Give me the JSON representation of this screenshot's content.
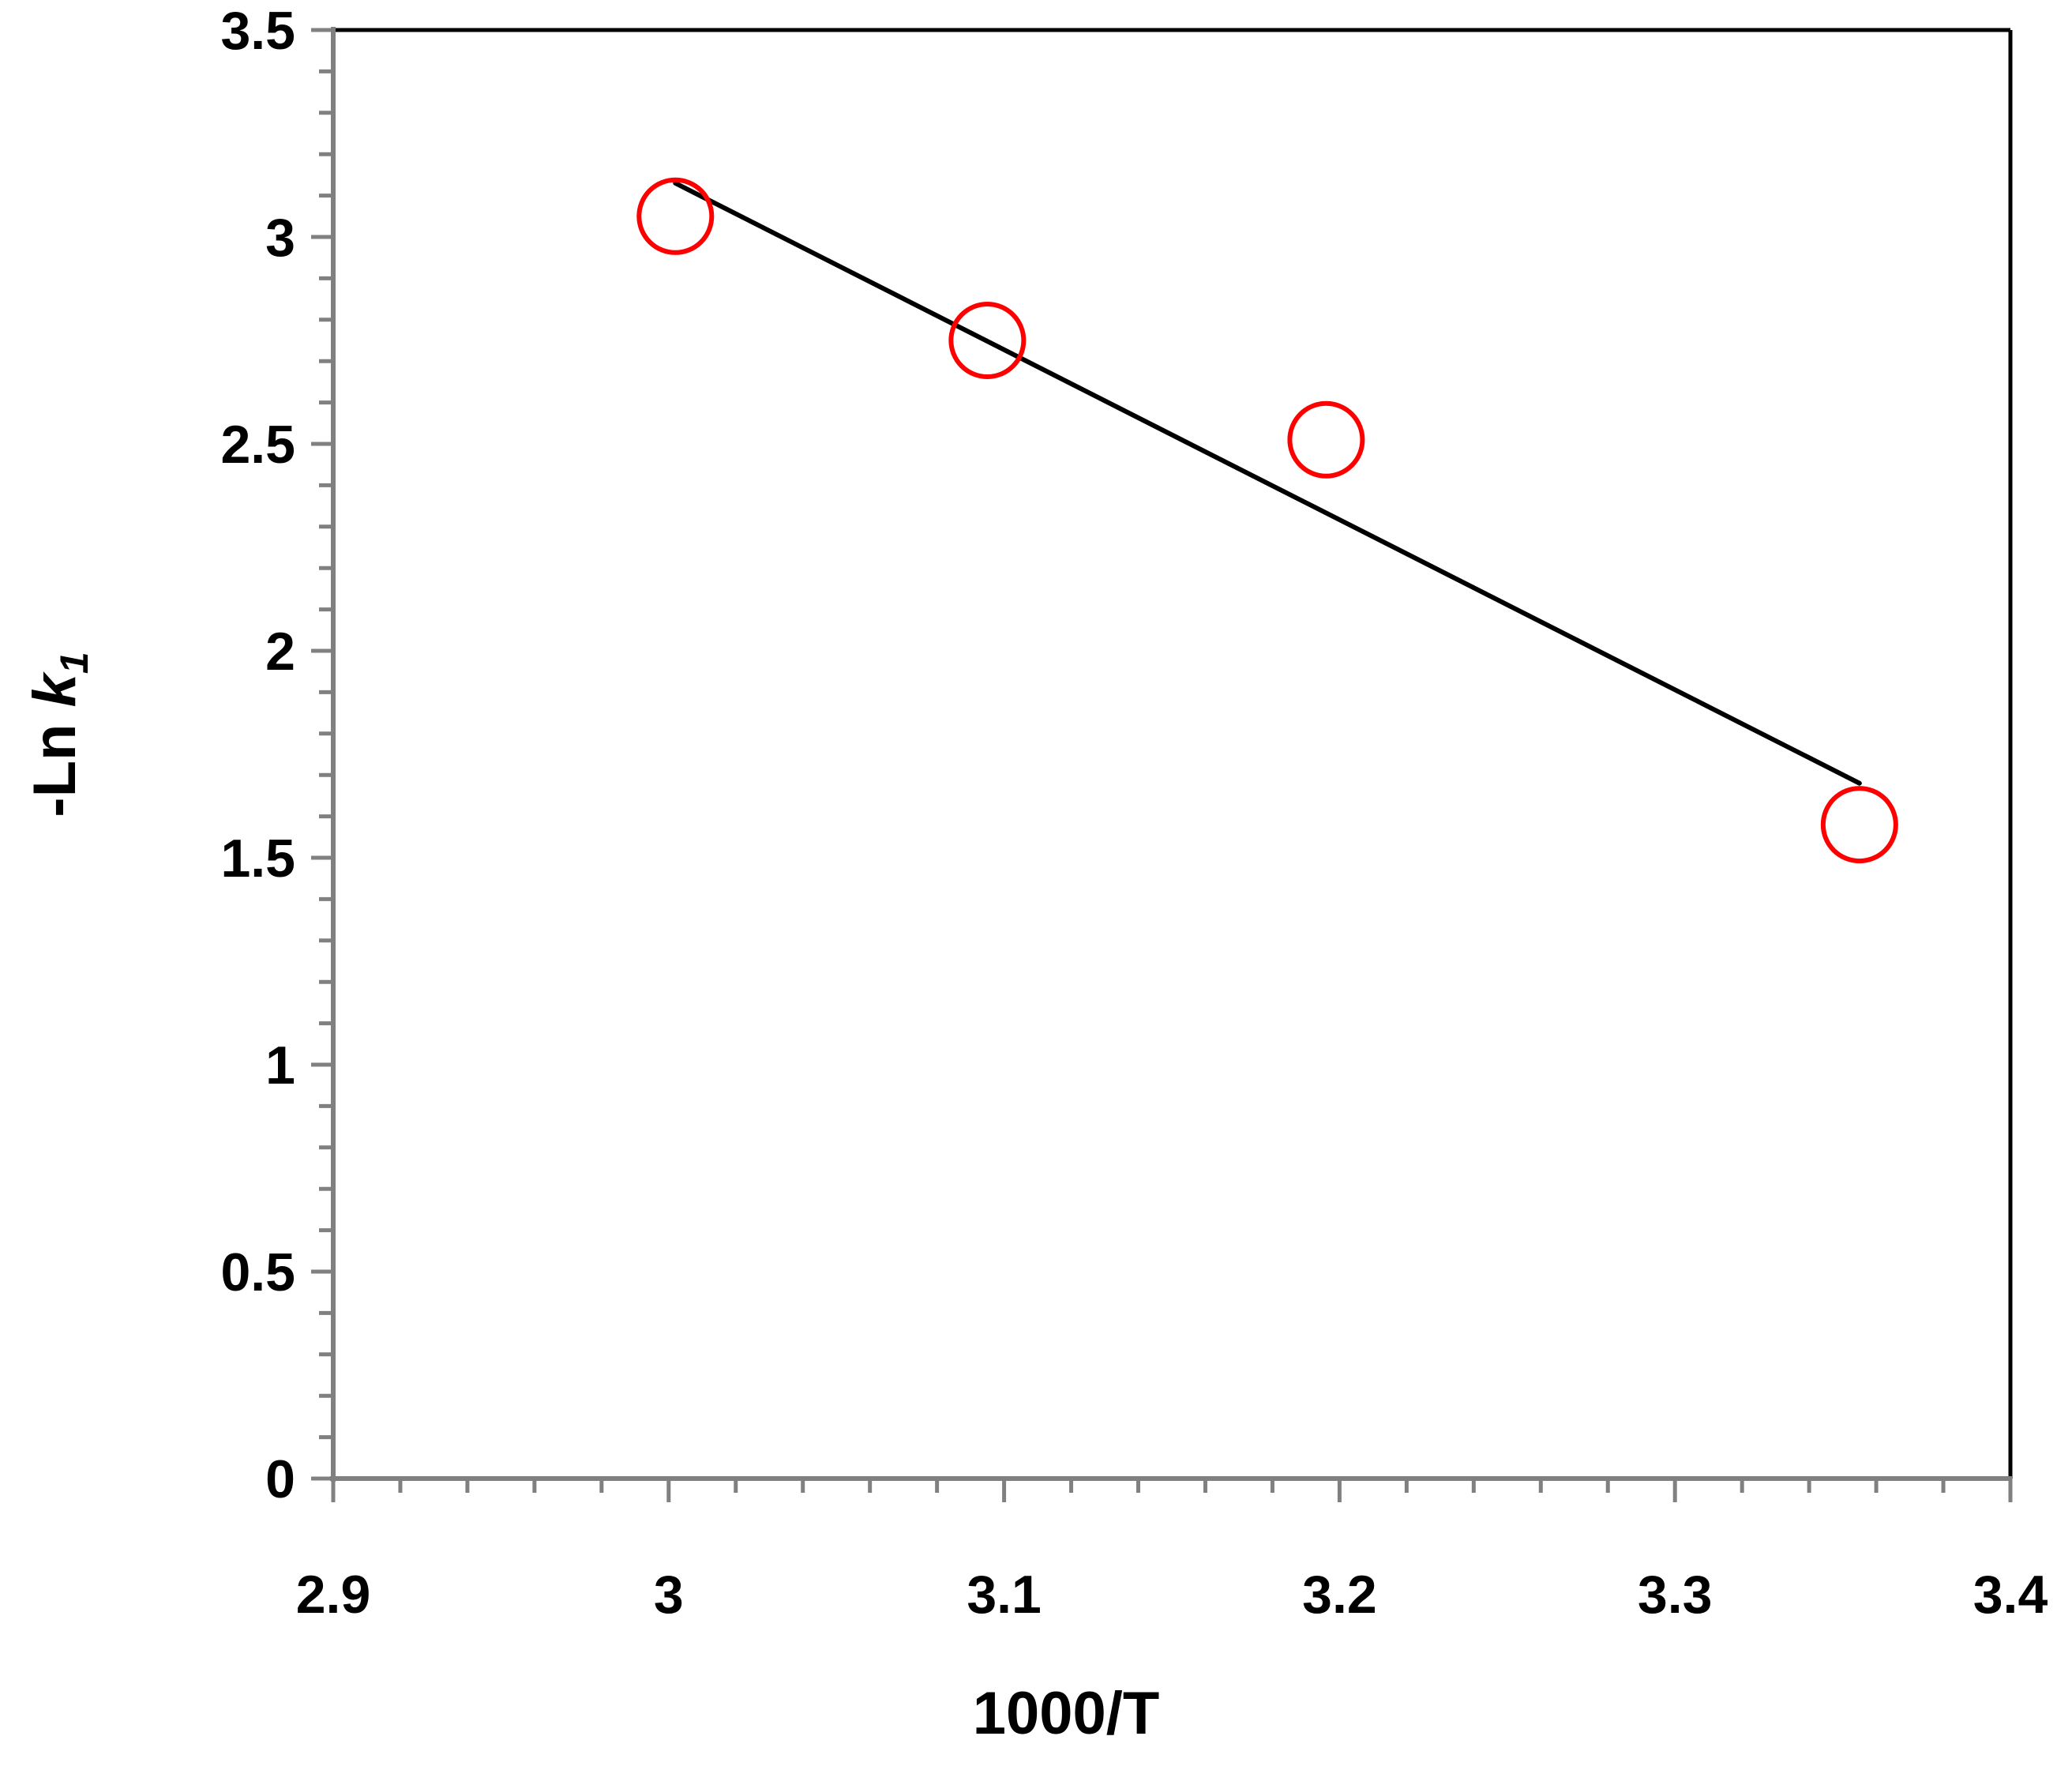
{
  "chart_data": {
    "type": "scatter",
    "xlabel": "1000/T",
    "ylabel": {
      "prefix": "-Ln ",
      "var": "k",
      "sub": "1"
    },
    "xlim": [
      2.9,
      3.4
    ],
    "ylim": [
      0,
      3.5
    ],
    "x_ticks": [
      "2.9",
      "3",
      "3.1",
      "3.2",
      "3.3",
      "3.4"
    ],
    "y_ticks": [
      "0",
      "0.5",
      "1",
      "1.5",
      "2",
      "2.5",
      "3",
      "3.5"
    ],
    "points": [
      {
        "x": 3.002,
        "y": 3.05
      },
      {
        "x": 3.095,
        "y": 2.75
      },
      {
        "x": 3.196,
        "y": 2.51
      },
      {
        "x": 3.355,
        "y": 1.58
      }
    ],
    "fit_line": {
      "x": [
        3.002,
        3.355
      ],
      "y": [
        3.13,
        1.68
      ]
    },
    "colors": {
      "marker": "#ff0000",
      "line": "#000000",
      "axis": "#808080",
      "frame": "#000000"
    },
    "grid": false,
    "legend": "none"
  }
}
